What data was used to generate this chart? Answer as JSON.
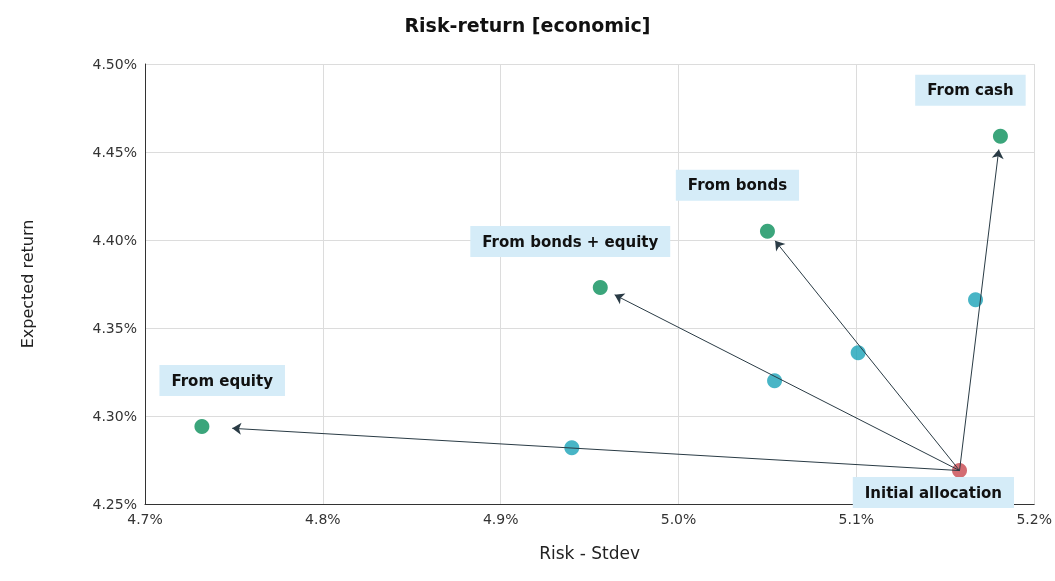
{
  "chart_data": {
    "type": "scatter",
    "title": "Risk-return [economic]",
    "xlabel": "Risk - Stdev",
    "ylabel": "Expected return",
    "series": [
      {
        "color": "#c8474f",
        "x": [
          5.158
        ],
        "values": [
          4.269
        ]
      },
      {
        "color": "#1aa3b8",
        "x": [
          4.94,
          5.054,
          5.101,
          5.167
        ],
        "values": [
          4.282,
          4.32,
          4.336,
          4.366
        ]
      },
      {
        "color": "#0a8f5a",
        "x": [
          4.732,
          4.956,
          5.05,
          5.181
        ],
        "values": [
          4.294,
          4.373,
          4.405,
          4.459
        ]
      }
    ],
    "xlim": [
      4.7,
      5.2
    ],
    "xticks": [
      {
        "value": 4.7,
        "label": "4.7%"
      },
      {
        "value": 4.8,
        "label": "4.8%"
      },
      {
        "value": 4.9,
        "label": "4.9%"
      },
      {
        "value": 5.0,
        "label": "5.0%"
      },
      {
        "value": 5.1,
        "label": "5.1%"
      },
      {
        "value": 5.2,
        "label": "5.2%"
      }
    ],
    "ylim": [
      4.25,
      4.5
    ],
    "yticks": [
      {
        "value": 4.25,
        "label": "4.25%"
      },
      {
        "value": 4.3,
        "label": "4.30%"
      },
      {
        "value": 4.35,
        "label": "4.35%"
      },
      {
        "value": 4.4,
        "label": "4.40%"
      },
      {
        "value": 4.45,
        "label": "4.45%"
      },
      {
        "value": 4.5,
        "label": "4.50%"
      }
    ],
    "annotations": [
      {
        "text": "From cash",
        "x": 5.181,
        "y": 4.459
      },
      {
        "text": "From bonds",
        "x": 5.05,
        "y": 4.405
      },
      {
        "text": "From bonds + equity",
        "x": 4.956,
        "y": 4.373
      },
      {
        "text": "From equity",
        "x": 4.732,
        "y": 4.294
      },
      {
        "text": "Initial allocation",
        "x": 5.158,
        "y": 4.269
      }
    ],
    "grid": true,
    "marker": "circle"
  }
}
